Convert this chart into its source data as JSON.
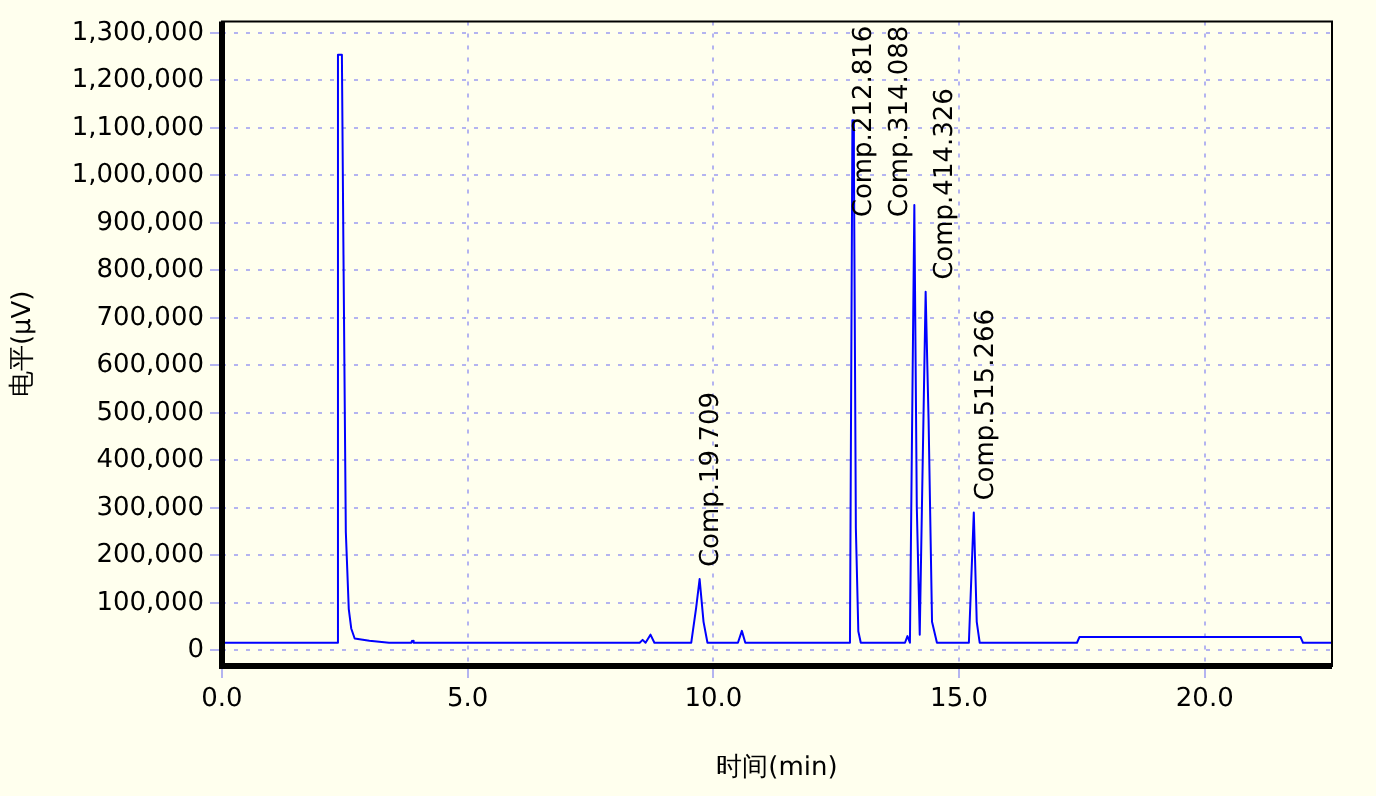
{
  "chart_data": {
    "type": "line",
    "xlabel": "时间(min)",
    "ylabel": "电平(μV)",
    "xlim": [
      0,
      22.59
    ],
    "ylim": [
      -33000,
      1324000
    ],
    "xticks": [
      {
        "value": 0,
        "label": "0.0"
      },
      {
        "value": 5,
        "label": "5.0"
      },
      {
        "value": 10,
        "label": "10.0"
      },
      {
        "value": 15,
        "label": "15.0"
      },
      {
        "value": 20,
        "label": "20.0"
      }
    ],
    "yticks": [
      0,
      {
        "value": 100000,
        "label": "100,000"
      },
      {
        "value": 200000,
        "label": "200,000"
      },
      {
        "value": 300000,
        "label": "300,000"
      },
      {
        "value": 400000,
        "label": "400,000"
      },
      {
        "value": 500000,
        "label": "500,000"
      },
      {
        "value": 600000,
        "label": "600,000"
      },
      {
        "value": 700000,
        "label": "700,000"
      },
      {
        "value": 800000,
        "label": "800,000"
      },
      {
        "value": 900000,
        "label": "900,000"
      },
      {
        "value": 1000000,
        "label": "1,000,000"
      },
      {
        "value": 1100000,
        "label": "1,100,000"
      },
      {
        "value": 1200000,
        "label": "1,200,000"
      },
      {
        "value": 1300000,
        "label": "1,300,000"
      }
    ],
    "grid": true,
    "legend": false,
    "marker": "none",
    "x": [
      0,
      2.33,
      2.36,
      2.44,
      2.47,
      2.52,
      2.58,
      2.63,
      2.7,
      3.0,
      3.4,
      3.85,
      3.87,
      3.9,
      8.5,
      8.56,
      8.62,
      8.72,
      8.8,
      9.55,
      9.65,
      9.72,
      9.8,
      9.88,
      10.5,
      10.58,
      10.65,
      12.78,
      12.83,
      12.86,
      12.9,
      12.95,
      13.0,
      13.9,
      13.95,
      14.0,
      14.09,
      14.14,
      14.2,
      14.32,
      14.38,
      14.45,
      14.55,
      15.2,
      15.3,
      15.36,
      15.42,
      17.4,
      17.45,
      21.95,
      22.0,
      22.59
    ],
    "series": [
      {
        "color": "#0000ff",
        "values": [
          16000,
          16000,
          1254000,
          1254000,
          860000,
          249000,
          87000,
          46000,
          25000,
          20000,
          16000,
          16000,
          20000,
          16000,
          16000,
          22000,
          16000,
          33000,
          16000,
          16000,
          90000,
          150000,
          60000,
          16000,
          16000,
          41000,
          16000,
          16000,
          1116000,
          1045000,
          257000,
          40000,
          16000,
          16000,
          30000,
          16000,
          938000,
          303000,
          33000,
          755000,
          485000,
          60000,
          16000,
          16000,
          290000,
          60000,
          16000,
          16000,
          28000,
          28000,
          16000,
          16000
        ]
      }
    ],
    "annotations": [
      {
        "text": "Comp.19.709",
        "x": 9.72,
        "y": 150000
      },
      {
        "text": "Comp.212.816",
        "x": 12.83,
        "y": 1116000
      },
      {
        "text": "Comp.314.088",
        "x": 14.09,
        "y": 938000
      },
      {
        "text": "Comp.414.326",
        "x": 14.32,
        "y": 755000
      },
      {
        "text": "Comp.515.266",
        "x": 15.3,
        "y": 290000
      }
    ]
  }
}
